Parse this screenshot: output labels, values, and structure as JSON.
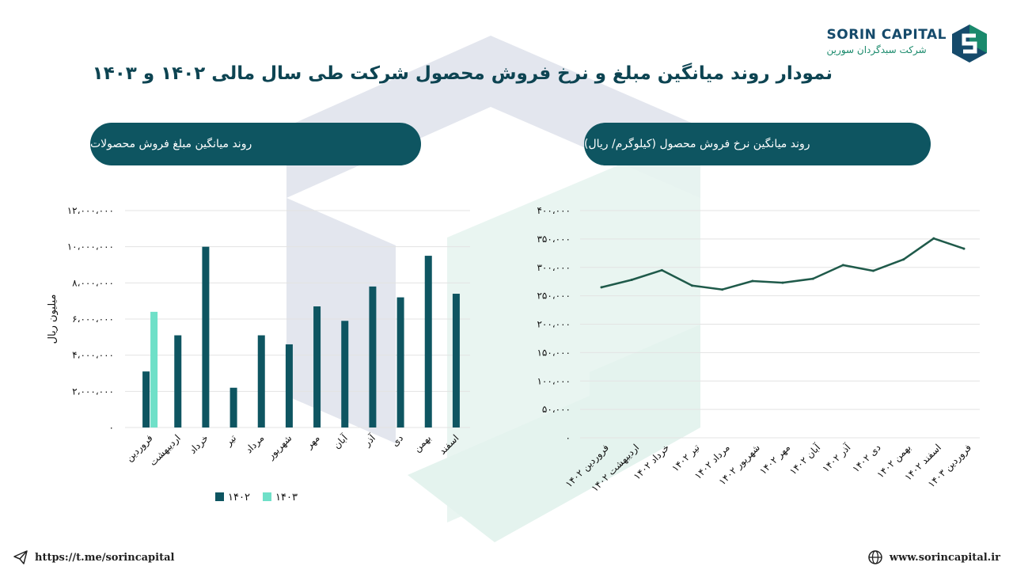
{
  "header": {
    "title": "نمودار روند میانگین مبلغ و نرخ فروش محصول شرکت طی سال مالی ۱۴۰۲ و ۱۴۰۳",
    "logo_name": "SORIN CAPITAL",
    "logo_sub": "شرکت سبدگردان سورین"
  },
  "footer": {
    "telegram": "https://t.me/sorincapital",
    "website": "www.sorincapital.ir"
  },
  "colors": {
    "series_1402": "#0e5561",
    "series_1403": "#6fe0c8",
    "line": "#1f5a4a",
    "pill": "#0e5561"
  },
  "chart_data": [
    {
      "type": "bar",
      "title": "روند میانگین مبلغ فروش محصولات",
      "ylabel": "میلیون ریال",
      "ylim": [
        0,
        12000000
      ],
      "yticks": [
        "۰",
        "۲،۰۰۰،۰۰۰",
        "۴،۰۰۰،۰۰۰",
        "۶،۰۰۰،۰۰۰",
        "۸،۰۰۰،۰۰۰",
        "۱۰،۰۰۰،۰۰۰",
        "۱۲،۰۰۰،۰۰۰"
      ],
      "ytick_values": [
        0,
        2000000,
        4000000,
        6000000,
        8000000,
        10000000,
        12000000
      ],
      "categories": [
        "فروردین",
        "اردیبهشت",
        "خرداد",
        "تیر",
        "مرداد",
        "شهریور",
        "مهر",
        "آبان",
        "آذر",
        "دی",
        "بهمن",
        "اسفند"
      ],
      "series": [
        {
          "name": "۱۴۰۲",
          "values": [
            3100000,
            5100000,
            10000000,
            2200000,
            5100000,
            4600000,
            6700000,
            5900000,
            7800000,
            7200000,
            9500000,
            7400000
          ]
        },
        {
          "name": "۱۴۰۳",
          "values": [
            6400000,
            null,
            null,
            null,
            null,
            null,
            null,
            null,
            null,
            null,
            null,
            null
          ]
        }
      ],
      "legend": "bottom",
      "grid": true
    },
    {
      "type": "line",
      "title": "روند میانگین نرخ فروش محصول (کیلوگرم/ ریال)",
      "ylim": [
        0,
        400000
      ],
      "yticks": [
        "۰",
        "۵۰،۰۰۰",
        "۱۰۰،۰۰۰",
        "۱۵۰،۰۰۰",
        "۲۰۰،۰۰۰",
        "۲۵۰،۰۰۰",
        "۳۰۰،۰۰۰",
        "۳۵۰،۰۰۰",
        "۴۰۰،۰۰۰"
      ],
      "ytick_values": [
        0,
        50000,
        100000,
        150000,
        200000,
        250000,
        300000,
        350000,
        400000
      ],
      "categories": [
        "فروردین ۱۴۰۲",
        "اردیبهشت ۱۴۰۲",
        "خرداد ۱۴۰۲",
        "تیر ۱۴۰۲",
        "مرداد ۱۴۰۲",
        "شهریور ۱۴۰۲",
        "مهر ۱۴۰۲",
        "آبان ۱۴۰۲",
        "آذر ۱۴۰۲",
        "دی ۱۴۰۲",
        "بهمن ۱۴۰۲",
        "اسفند ۱۴۰۲",
        "فروردین ۱۴۰۳"
      ],
      "values": [
        265000,
        278000,
        295000,
        268000,
        261000,
        276000,
        273000,
        280000,
        304000,
        294000,
        314000,
        351000,
        333000
      ],
      "grid": true
    }
  ]
}
